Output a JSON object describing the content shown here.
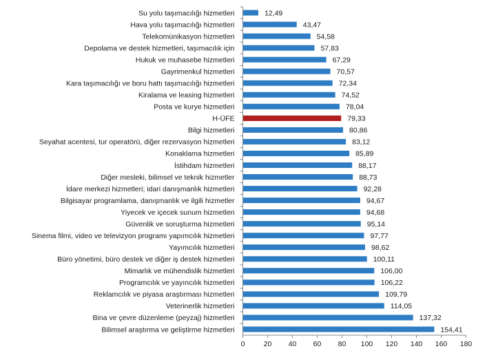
{
  "chart_data": {
    "type": "bar",
    "orientation": "horizontal",
    "title": "",
    "xlabel": "",
    "ylabel": "",
    "xlim": [
      0,
      180
    ],
    "xticks": [
      0,
      20,
      40,
      60,
      80,
      100,
      120,
      140,
      160,
      180
    ],
    "xtick_labels": [
      "0",
      "20",
      "40",
      "60",
      "80",
      "100",
      "120",
      "140",
      "160",
      "180"
    ],
    "grid": false,
    "legend": "none",
    "colors": {
      "default": "#2e7dc4",
      "highlight": "#b01e1e"
    },
    "highlight_category": "H-ÜFE",
    "categories": [
      "Su yolu taşımacılığı hizmetleri",
      "Hava yolu taşımacılığı hizmetleri",
      "Telekomünikasyon hizmetleri",
      "Depolama ve destek hizmetleri, taşımacılık için",
      "Hukuk ve muhasebe hizmetleri",
      "Gayrimenkul hizmetleri",
      "Kara taşımacılığı ve boru hattı taşımacılığı hizmetleri",
      "Kiralama ve leasing hizmetleri",
      "Posta ve kurye hizmetleri",
      "H-ÜFE",
      "Bilgi hizmetleri",
      "Seyahat acentesi, tur operatörü, diğer rezervasyon hizmetleri",
      "Konaklama hizmetleri",
      "İstihdam hizmetleri",
      "Diğer mesleki, bilimsel ve teknik hizmetler",
      "İdare merkezi hizmetleri; idari danışmanlık hizmetleri",
      "Bilgisayar programlama, danışmanlık ve ilgili hizmetler",
      "Yiyecek ve içecek sunum hizmetleri",
      "Güvenlik ve soruşturma hizmetleri",
      "Sinema filmi, video ve televizyon programı yapımcılık hizmetleri",
      "Yayımcılık hizmetleri",
      "Büro yönetimi, büro destek ve diğer iş destek hizmetleri",
      "Mimarlık ve mühendislik hizmetleri",
      "Programcılık ve yayıncılık hizmetleri",
      "Reklamcılık ve piyasa araştırması hizmetleri",
      "Veterinerlik hizmetleri",
      "Bina ve çevre düzenleme (peyzaj) hizmetleri",
      "Bilimsel araştırma ve geliştirme hizmetleri"
    ],
    "values": [
      12.49,
      43.47,
      54.58,
      57.83,
      67.29,
      70.57,
      72.34,
      74.52,
      78.04,
      79.33,
      80.86,
      83.12,
      85.89,
      88.17,
      88.73,
      92.28,
      94.67,
      94.68,
      95.14,
      97.77,
      98.62,
      100.11,
      106.0,
      106.22,
      109.79,
      114.05,
      137.32,
      154.41
    ],
    "value_labels": [
      "12,49",
      "43,47",
      "54,58",
      "57,83",
      "67,29",
      "70,57",
      "72,34",
      "74,52",
      "78,04",
      "79,33",
      "80,86",
      "83,12",
      "85,89",
      "88,17",
      "88,73",
      "92,28",
      "94,67",
      "94,68",
      "95,14",
      "97,77",
      "98,62",
      "100,11",
      "106,00",
      "106,22",
      "109,79",
      "114,05",
      "137,32",
      "154,41"
    ]
  }
}
